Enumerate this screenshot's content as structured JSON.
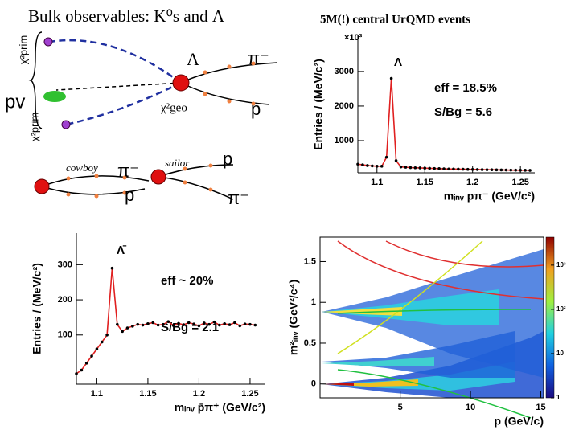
{
  "title": "Bulk observables: K⁰s and Λ",
  "subtitle": "5M(!)  central UrQMD events",
  "diagram": {
    "labels": [
      "χ²prim",
      "pv",
      "χ²prim",
      "Λ",
      "π⁻",
      "χ²geo",
      "p",
      "cowboy",
      "π⁻",
      "p",
      "sailor",
      "p",
      "π⁻"
    ]
  },
  "chart_data": [
    {
      "type": "line",
      "annotations": [
        "Λ",
        "eff = 18.5%",
        "S/Bg = 5.6"
      ],
      "x_label": "mᵢₙᵥ pπ⁻ (GeV/c²)",
      "y_label": "Entries / (MeV/c²)",
      "y_multiplier": "×10³",
      "x": [
        1.08,
        1.085,
        1.09,
        1.095,
        1.1,
        1.105,
        1.11,
        1.115,
        1.12,
        1.125,
        1.13,
        1.135,
        1.14,
        1.145,
        1.15,
        1.155,
        1.16,
        1.165,
        1.17,
        1.175,
        1.18,
        1.185,
        1.19,
        1.195,
        1.2,
        1.205,
        1.21,
        1.215,
        1.22,
        1.225,
        1.23,
        1.235,
        1.24,
        1.245,
        1.25,
        1.255,
        1.26
      ],
      "series": [
        {
          "color": "#e02020",
          "marker_color": "#000000",
          "values": [
            320,
            300,
            280,
            270,
            260,
            260,
            520,
            2800,
            420,
            240,
            230,
            220,
            215,
            210,
            205,
            200,
            195,
            190,
            185,
            180,
            178,
            175,
            172,
            170,
            168,
            165,
            162,
            160,
            158,
            155,
            152,
            150,
            148,
            146,
            145,
            143,
            140
          ]
        }
      ],
      "xlim": [
        1.08,
        1.265
      ],
      "xticks": [
        1.1,
        1.15,
        1.2,
        1.25
      ],
      "ylim": [
        70,
        4020
      ],
      "yticks": [
        1000,
        2000,
        3000
      ]
    },
    {
      "type": "line",
      "annotations": [
        "Λ̄",
        "eff ~ 20%",
        "S/Bg = 2.1"
      ],
      "x_label": "mᵢₙᵥ p̄π⁺ (GeV/c²)",
      "y_label": "Entries / (MeV/c²)",
      "x": [
        1.08,
        1.085,
        1.09,
        1.095,
        1.1,
        1.105,
        1.11,
        1.115,
        1.12,
        1.125,
        1.13,
        1.135,
        1.14,
        1.145,
        1.15,
        1.155,
        1.16,
        1.165,
        1.17,
        1.175,
        1.18,
        1.185,
        1.19,
        1.195,
        1.2,
        1.205,
        1.21,
        1.215,
        1.22,
        1.225,
        1.23,
        1.235,
        1.24,
        1.245,
        1.25,
        1.255
      ],
      "series": [
        {
          "color": "#e02020",
          "marker_color": "#000000",
          "values": [
            -10,
            0,
            20,
            40,
            60,
            80,
            100,
            290,
            130,
            110,
            120,
            125,
            130,
            128,
            132,
            135,
            128,
            130,
            138,
            127,
            133,
            129,
            135,
            131,
            126,
            134,
            130,
            137,
            128,
            132,
            129,
            135,
            126,
            131,
            130,
            128
          ]
        }
      ],
      "xlim": [
        1.08,
        1.265
      ],
      "xticks": [
        1.1,
        1.15,
        1.2,
        1.25
      ],
      "ylim": [
        -40,
        390
      ],
      "yticks": [
        100,
        200,
        300
      ]
    },
    {
      "type": "heatmap",
      "x_label": "p (GeV/c)",
      "y_label": "m²ᵢₙᵥ (GeV²/c⁴)",
      "xlim": [
        -0.7,
        15.2
      ],
      "xticks": [
        5,
        10,
        15
      ],
      "ylim": [
        -0.17,
        1.8
      ],
      "yticks": [
        0,
        0.5,
        1,
        1.5
      ],
      "zlim": [
        1,
        4300
      ],
      "zscale": "log",
      "zticks": [
        1,
        10,
        {
          "value": 100,
          "label": "10²"
        },
        {
          "value": 1000,
          "label": "10³"
        }
      ]
    }
  ]
}
